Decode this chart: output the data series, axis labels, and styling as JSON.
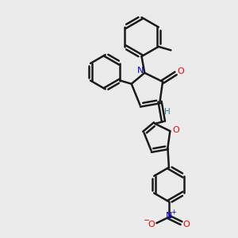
{
  "bg_color": "#ebebeb",
  "bond_color": "#1a1a1a",
  "bond_width": 1.8,
  "N_color": "#0000ee",
  "O_color": "#ee0000",
  "H_color": "#2f8080",
  "figsize": [
    3.0,
    3.0
  ],
  "dpi": 100,
  "xlim": [
    0,
    10
  ],
  "ylim": [
    0,
    10
  ]
}
